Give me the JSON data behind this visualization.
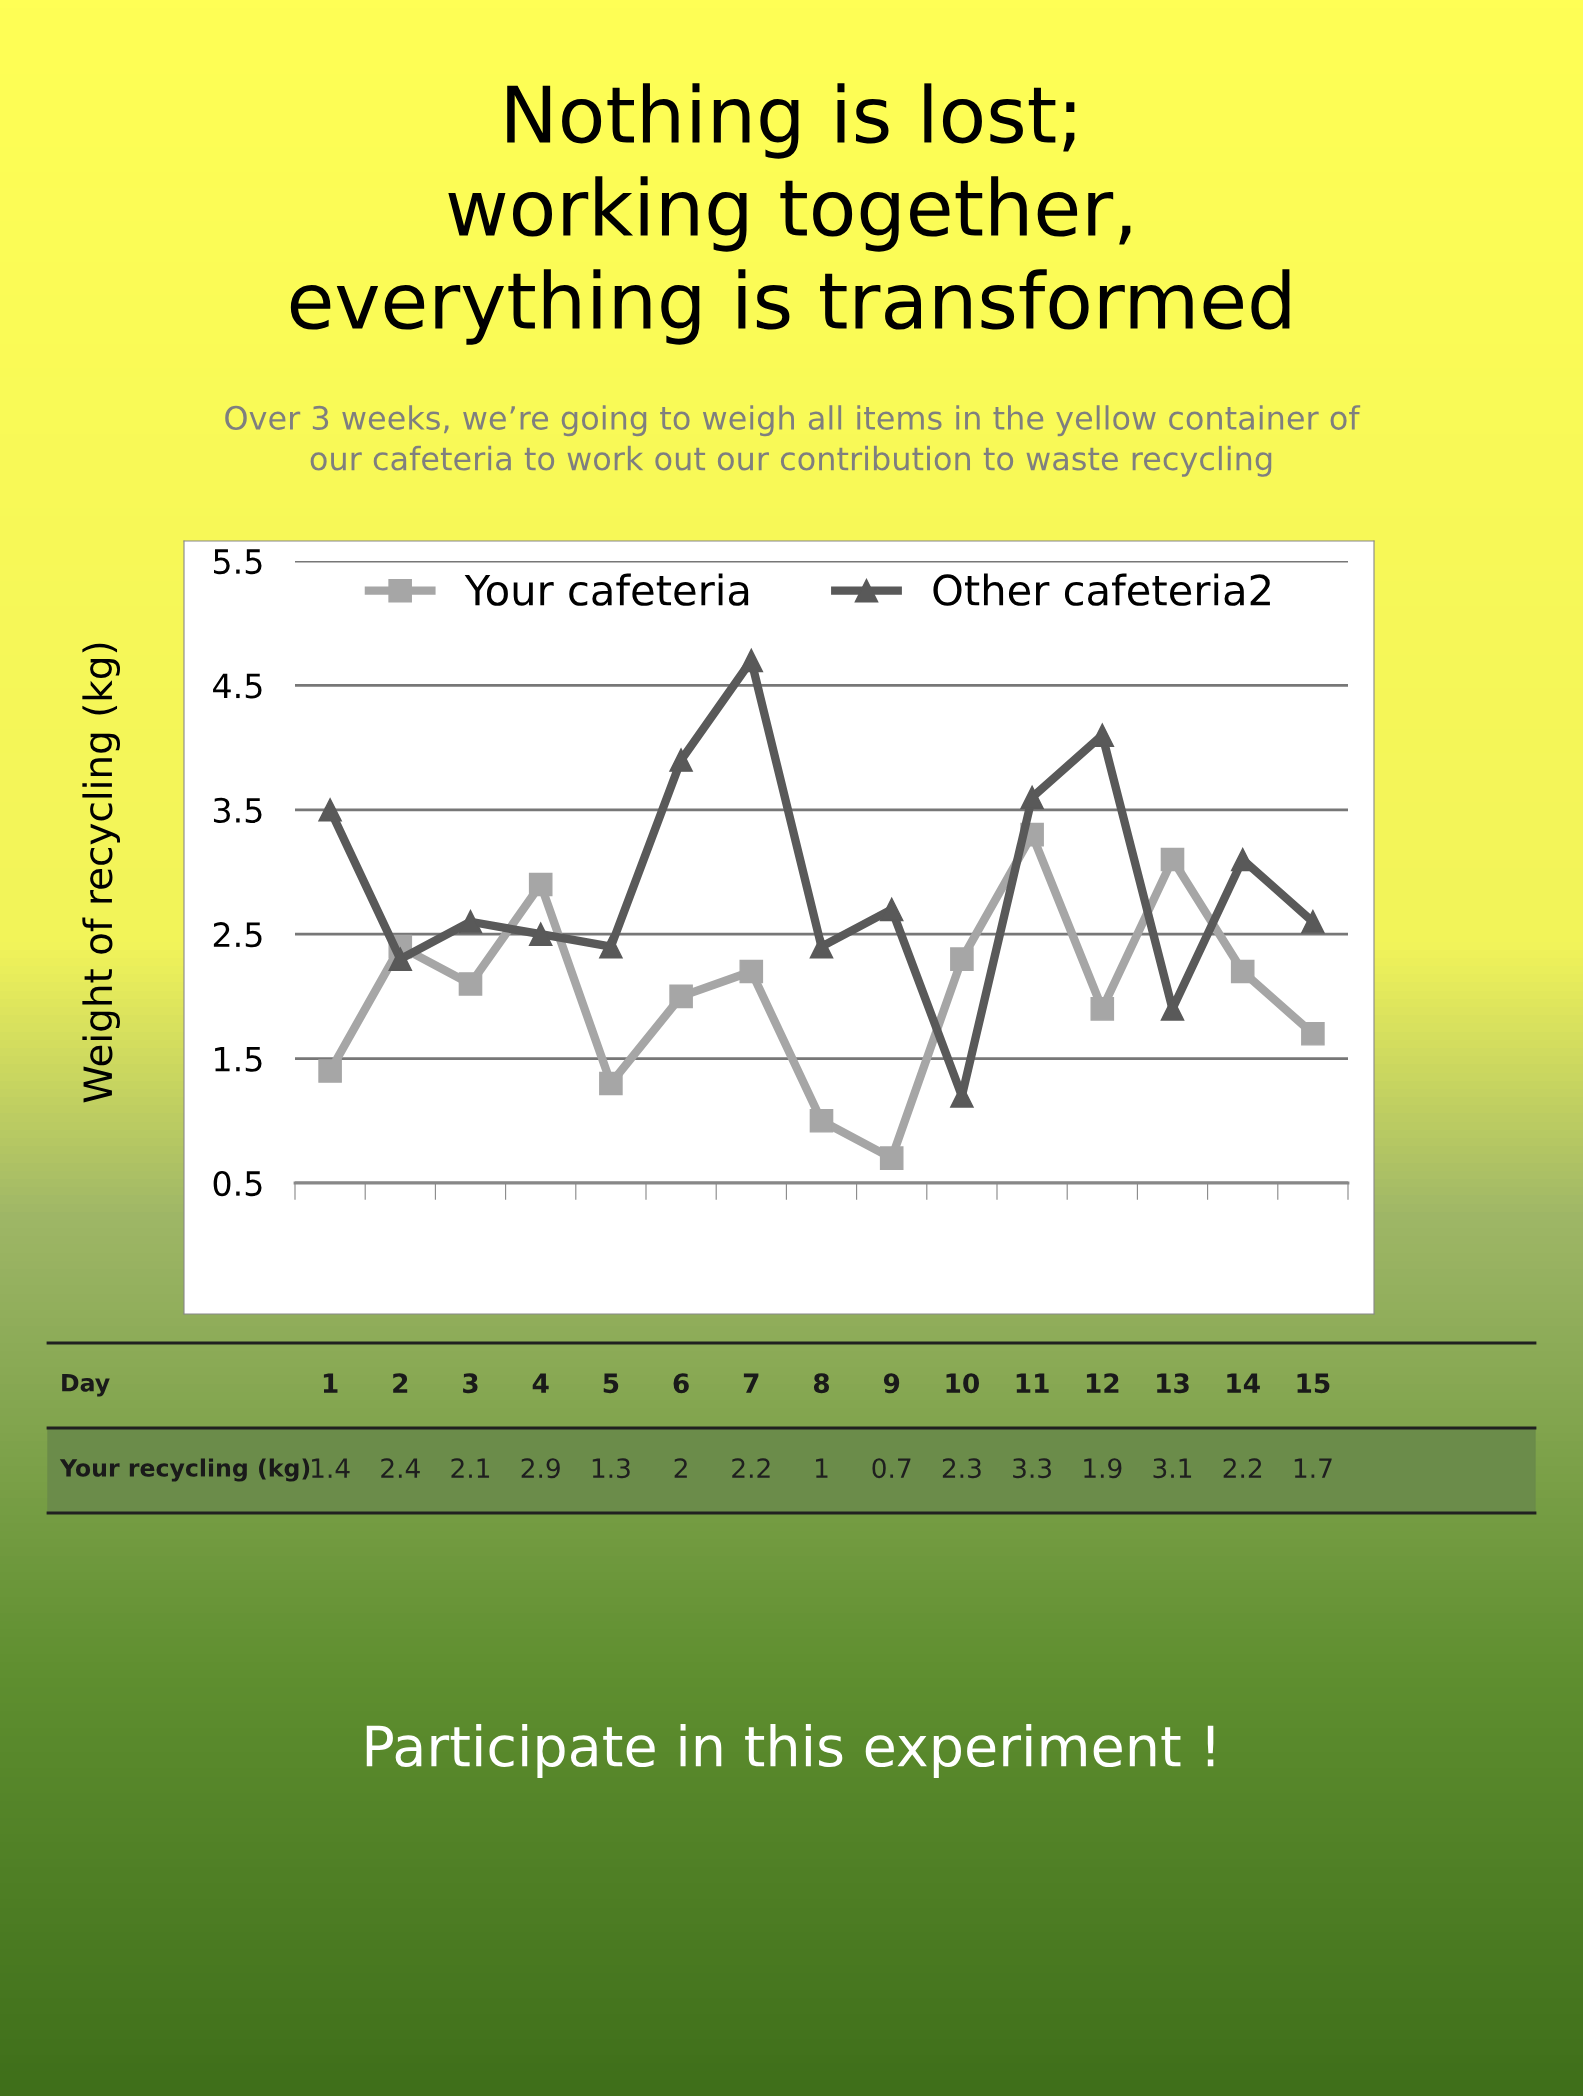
{
  "chart_data": {
    "type": "line",
    "title": "Nothing is lost;\nworking together,\neverything is transformed",
    "subtitle": "Over 3 weeks, we’re going to weigh all items in the yellow container of\nour cafeteria to work out our contribution to waste recycling",
    "ylabel": "Weight of recycling (kg)",
    "categories": [
      "1",
      "2",
      "3",
      "4",
      "5",
      "6",
      "7",
      "8",
      "9",
      "10",
      "11",
      "12",
      "13",
      "14",
      "15"
    ],
    "series": [
      {
        "name": "Your cafeteria",
        "color": "#a6a6a6",
        "marker": "square",
        "values": [
          1.4,
          2.4,
          2.1,
          2.9,
          1.3,
          2,
          2.2,
          1,
          0.7,
          2.3,
          3.3,
          1.9,
          3.1,
          2.2,
          1.7
        ],
        "value_labels": [
          "1.4",
          "2.4",
          "2.1",
          "2.9",
          "1.3",
          "2",
          "2.2",
          "1",
          "0.7",
          "2.3",
          "3.3",
          "1.9",
          "3.1",
          "2.2",
          "1.7"
        ]
      },
      {
        "name": "Other cafeteria2",
        "color": "#595959",
        "marker": "triangle",
        "values": [
          3.5,
          2.3,
          2.6,
          2.5,
          2.4,
          3.9,
          4.7,
          2.4,
          2.7,
          1.2,
          3.6,
          4.1,
          1.9,
          3.1,
          2.6
        ]
      }
    ],
    "ylim": [
      0.5,
      5.5
    ],
    "yticks": [
      0.5,
      1.5,
      2.5,
      3.5,
      4.5,
      5.5
    ],
    "grid": "y",
    "legend": "top",
    "line_style": "solid",
    "tick_labels": "y",
    "annotations": [
      "Day",
      "Your recycling (kg)",
      "Participate in this experiment !"
    ]
  }
}
